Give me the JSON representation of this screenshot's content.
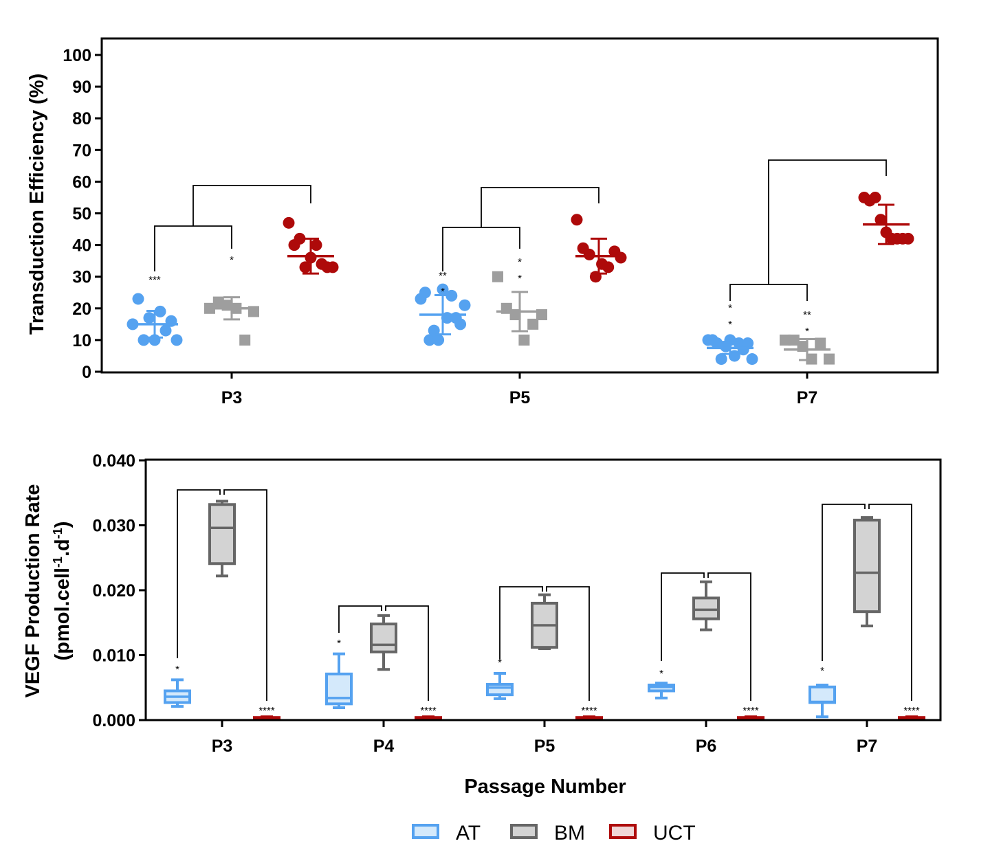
{
  "colors": {
    "AT": "#55A2F0",
    "AT_fill": "#D4E9FB",
    "BM_box": "#666666",
    "BM_point": "#9E9E9E",
    "BM_fill": "#D3D3D3",
    "UCT": "#AE0A0A",
    "UCT_fill": "#F0D6D6"
  },
  "chart_data": [
    {
      "type": "scatter",
      "ylabel": "Transduction Efficiency (%)",
      "ylim": [
        0,
        100
      ],
      "yticks": [
        "0",
        "10",
        "20",
        "30",
        "40",
        "50",
        "60",
        "70",
        "80",
        "90",
        "100"
      ],
      "categories": [
        "P3",
        "P5",
        "P7"
      ],
      "series": [
        {
          "name": "AT",
          "shape": "circle",
          "points": [
            [
              15,
              23,
              10,
              17,
              10,
              19,
              13,
              16,
              10
            ],
            [
              23,
              25,
              10,
              13,
              10,
              26,
              17,
              24,
              17,
              15,
              21
            ],
            [
              10,
              10,
              9,
              4,
              8,
              10,
              5,
              9,
              7,
              9,
              4
            ]
          ],
          "mean": [
            15,
            18,
            7.5
          ],
          "sd": [
            4.2,
            6.2,
            1.9
          ]
        },
        {
          "name": "BM",
          "shape": "square",
          "points": [
            [
              20,
              22,
              21,
              20,
              10,
              19
            ],
            [
              30,
              20,
              18,
              10,
              15,
              18
            ],
            [
              10,
              10,
              8,
              4,
              9,
              4
            ]
          ],
          "mean": [
            20,
            19,
            7
          ],
          "sd": [
            3.5,
            6.2,
            3.3
          ]
        },
        {
          "name": "UCT",
          "shape": "circle",
          "points": [
            [
              47,
              40,
              42,
              33,
              36,
              40,
              34,
              33,
              33
            ],
            [
              48,
              39,
              37,
              30,
              34,
              33,
              38,
              36
            ],
            [
              55,
              54,
              55,
              48,
              44,
              42,
              42,
              42,
              42
            ]
          ],
          "mean": [
            36.5,
            36.5,
            46.5
          ],
          "sd": [
            5.5,
            5.5,
            6.2
          ]
        }
      ],
      "brackets": [
        {
          "group": "P3",
          "inner": [
            "AT",
            "BM"
          ],
          "outer": "UCT"
        },
        {
          "group": "P5",
          "inner": [
            "AT",
            "BM"
          ],
          "outer": "UCT"
        },
        {
          "group": "P7",
          "inner": [
            "AT",
            "BM"
          ],
          "outer": "UCT"
        }
      ],
      "annotations": [
        {
          "group": "P3",
          "series": "AT",
          "lines": [
            "***"
          ]
        },
        {
          "group": "P3",
          "series": "BM",
          "lines": [
            "*"
          ]
        },
        {
          "group": "P5",
          "series": "AT",
          "lines": [
            "**",
            "*"
          ]
        },
        {
          "group": "P5",
          "series": "BM",
          "lines": [
            "*",
            "*"
          ]
        },
        {
          "group": "P7",
          "series": "AT",
          "lines": [
            "*",
            "*"
          ]
        },
        {
          "group": "P7",
          "series": "BM",
          "lines": [
            "**",
            "*"
          ]
        }
      ]
    },
    {
      "type": "box",
      "ylabel_line1": "VEGF Production Rate",
      "ylabel_line2": "(pmol.cell",
      "ylabel_sup1": "-1",
      "ylabel_mid": ".d",
      "ylabel_sup2": "-1",
      "ylabel_end": ")",
      "ylim": [
        0,
        0.04
      ],
      "yticks": [
        "0.000",
        "0.010",
        "0.020",
        "0.030",
        "0.040"
      ],
      "xlabel": "Passage Number",
      "categories": [
        "P3",
        "P4",
        "P5",
        "P6",
        "P7"
      ],
      "series": [
        {
          "name": "AT",
          "boxes": [
            {
              "min": 0.0021,
              "q1": 0.0027,
              "median": 0.0036,
              "q3": 0.0045,
              "max": 0.0062
            },
            {
              "min": 0.0019,
              "q1": 0.0025,
              "median": 0.0034,
              "q3": 0.0071,
              "max": 0.0102
            },
            {
              "min": 0.0033,
              "q1": 0.0039,
              "median": 0.005,
              "q3": 0.0055,
              "max": 0.0072
            },
            {
              "min": 0.0034,
              "q1": 0.0045,
              "median": 0.0051,
              "q3": 0.0054,
              "max": 0.0057
            },
            {
              "min": 0.0005,
              "q1": 0.0027,
              "median": 0.0028,
              "q3": 0.0051,
              "max": 0.0054
            }
          ]
        },
        {
          "name": "BM",
          "boxes": [
            {
              "min": 0.0222,
              "q1": 0.0241,
              "median": 0.0296,
              "q3": 0.0332,
              "max": 0.0337
            },
            {
              "min": 0.0078,
              "q1": 0.0105,
              "median": 0.0116,
              "q3": 0.0148,
              "max": 0.0161
            },
            {
              "min": 0.011,
              "q1": 0.0112,
              "median": 0.0146,
              "q3": 0.018,
              "max": 0.0193
            },
            {
              "min": 0.0139,
              "q1": 0.0156,
              "median": 0.017,
              "q3": 0.0188,
              "max": 0.0213
            },
            {
              "min": 0.0145,
              "q1": 0.0167,
              "median": 0.0227,
              "q3": 0.0308,
              "max": 0.0312
            }
          ]
        },
        {
          "name": "UCT",
          "boxes": [
            {
              "min": 0.0001,
              "q1": 0.0002,
              "median": 0.0003,
              "q3": 0.0004,
              "max": 0.0005
            },
            {
              "min": 0.0001,
              "q1": 0.0002,
              "median": 0.0003,
              "q3": 0.0004,
              "max": 0.0005
            },
            {
              "min": 0.0001,
              "q1": 0.0002,
              "median": 0.0003,
              "q3": 0.0004,
              "max": 0.0005
            },
            {
              "min": 0.0001,
              "q1": 0.0002,
              "median": 0.0003,
              "q3": 0.0004,
              "max": 0.0005
            },
            {
              "min": 0.0001,
              "q1": 0.0002,
              "median": 0.0003,
              "q3": 0.0004,
              "max": 0.0005
            }
          ]
        }
      ],
      "annotations": [
        {
          "group": "P3",
          "series": "AT",
          "text": "*"
        },
        {
          "group": "P3",
          "series": "UCT",
          "text": "****"
        },
        {
          "group": "P4",
          "series": "AT",
          "text": "*"
        },
        {
          "group": "P4",
          "series": "UCT",
          "text": "****"
        },
        {
          "group": "P5",
          "series": "AT",
          "text": "*"
        },
        {
          "group": "P5",
          "series": "UCT",
          "text": "****"
        },
        {
          "group": "P6",
          "series": "AT",
          "text": "*"
        },
        {
          "group": "P6",
          "series": "UCT",
          "text": "****"
        },
        {
          "group": "P7",
          "series": "AT",
          "text": "*"
        },
        {
          "group": "P7",
          "series": "UCT",
          "text": "****"
        }
      ]
    }
  ],
  "legend": {
    "position": "bottom",
    "items": [
      "AT",
      "BM",
      "UCT"
    ]
  }
}
